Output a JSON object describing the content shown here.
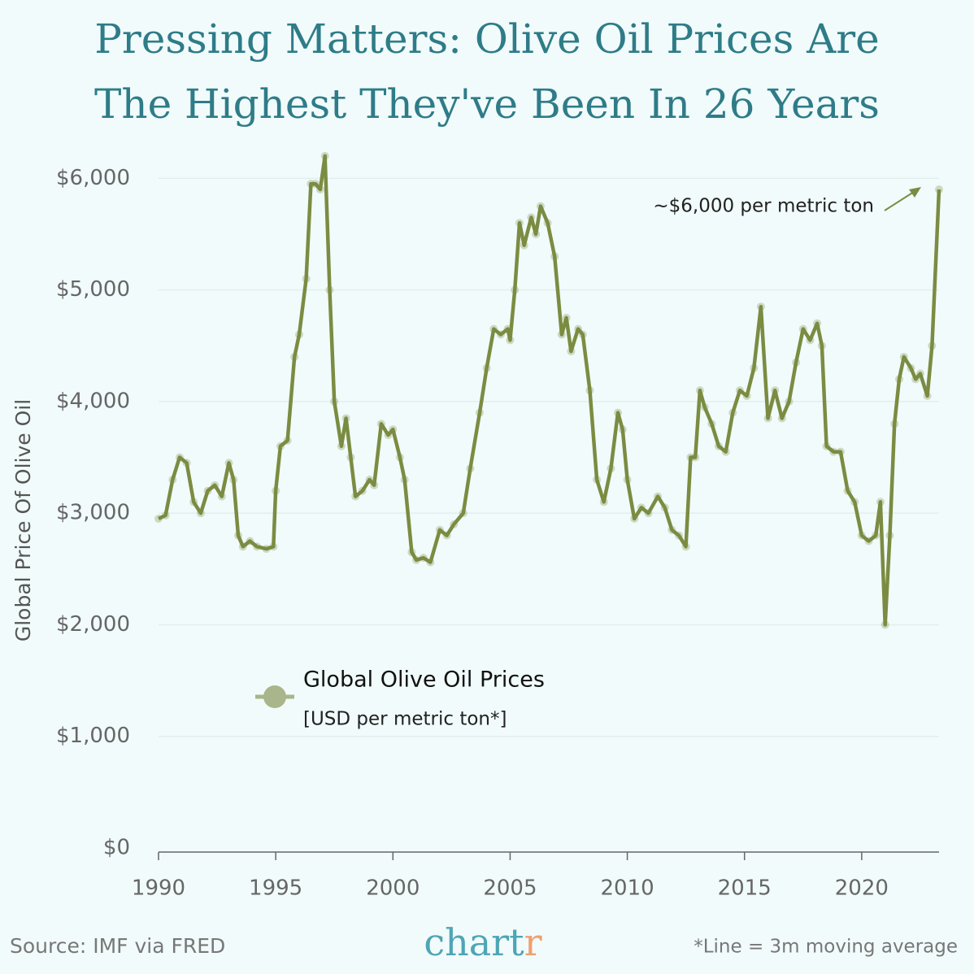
{
  "chart_data": {
    "type": "line",
    "title": [
      "Pressing Matters: Olive Oil Prices Are",
      "The Highest They've Been In 26 Years"
    ],
    "ylabel": "Global Price Of Olive Oil",
    "annotation": "~$6,000 per metric ton",
    "legend_note": "[USD per metric ton*]",
    "source": "Source: IMF via FRED",
    "footnote": "*Line = 3m moving average",
    "brand": [
      "chart",
      "r"
    ],
    "x": [
      1990.0,
      1990.3,
      1990.6,
      1990.9,
      1991.2,
      1991.5,
      1991.8,
      1992.1,
      1992.4,
      1992.7,
      1993.0,
      1993.2,
      1993.4,
      1993.6,
      1993.9,
      1994.2,
      1994.6,
      1994.9,
      1995.0,
      1995.2,
      1995.5,
      1995.8,
      1996.0,
      1996.3,
      1996.5,
      1996.7,
      1996.9,
      1997.1,
      1997.3,
      1997.5,
      1997.8,
      1998.0,
      1998.2,
      1998.4,
      1998.7,
      1999.0,
      1999.2,
      1999.5,
      1999.8,
      2000.0,
      2000.3,
      2000.5,
      2000.8,
      2001.0,
      2001.3,
      2001.6,
      2002.0,
      2002.3,
      2002.6,
      2003.0,
      2003.3,
      2003.7,
      2004.0,
      2004.3,
      2004.6,
      2004.9,
      2005.0,
      2005.2,
      2005.4,
      2005.6,
      2005.9,
      2006.1,
      2006.3,
      2006.6,
      2006.9,
      2007.2,
      2007.4,
      2007.6,
      2007.9,
      2008.1,
      2008.4,
      2008.7,
      2009.0,
      2009.3,
      2009.6,
      2009.8,
      2010.0,
      2010.3,
      2010.6,
      2010.9,
      2011.3,
      2011.6,
      2011.9,
      2012.2,
      2012.5,
      2012.7,
      2012.9,
      2013.1,
      2013.3,
      2013.6,
      2013.9,
      2014.2,
      2014.5,
      2014.8,
      2015.1,
      2015.4,
      2015.7,
      2016.0,
      2016.3,
      2016.6,
      2016.9,
      2017.2,
      2017.5,
      2017.8,
      2018.1,
      2018.3,
      2018.5,
      2018.8,
      2019.1,
      2019.4,
      2019.7,
      2020.0,
      2020.3,
      2020.6,
      2020.8,
      2021.0,
      2021.2,
      2021.4,
      2021.6,
      2021.8,
      2022.1,
      2022.3,
      2022.5,
      2022.8,
      2023.0,
      2023.3
    ],
    "series": [
      {
        "name": "Global Olive Oil Prices",
        "color": "#7b8c42",
        "values": [
          2950,
          2980,
          3300,
          3500,
          3450,
          3100,
          3000,
          3200,
          3250,
          3150,
          3450,
          3300,
          2800,
          2700,
          2750,
          2700,
          2680,
          2700,
          3200,
          3600,
          3650,
          4400,
          4600,
          5100,
          5950,
          5950,
          5900,
          6200,
          5000,
          4000,
          3600,
          3850,
          3500,
          3150,
          3200,
          3300,
          3250,
          3800,
          3700,
          3750,
          3500,
          3300,
          2650,
          2580,
          2600,
          2560,
          2850,
          2800,
          2900,
          3000,
          3400,
          3900,
          4300,
          4650,
          4600,
          4650,
          4550,
          5000,
          5600,
          5400,
          5650,
          5500,
          5750,
          5600,
          5300,
          4600,
          4750,
          4450,
          4650,
          4600,
          4100,
          3300,
          3100,
          3400,
          3900,
          3750,
          3300,
          2950,
          3050,
          3000,
          3150,
          3050,
          2850,
          2800,
          2700,
          3500,
          3500,
          4100,
          3950,
          3800,
          3600,
          3550,
          3900,
          4100,
          4050,
          4300,
          4850,
          3850,
          4100,
          3850,
          4000,
          4350,
          4650,
          4550,
          4700,
          4500,
          3600,
          3550,
          3550,
          3200,
          3100,
          2800,
          2750,
          2800,
          3100,
          2000,
          2800,
          3800,
          4200,
          4400,
          4300,
          4200,
          4250,
          4050,
          4500,
          5900
        ]
      }
    ],
    "xlim": [
      1990,
      2023.3
    ],
    "ylim": [
      0,
      6250
    ],
    "xticks": [
      1990,
      1995,
      2000,
      2005,
      2010,
      2015,
      2020
    ],
    "yticks": [
      {
        "value": 0,
        "label": "$0"
      },
      {
        "value": 1000,
        "label": "$1,000"
      },
      {
        "value": 2000,
        "label": "$2,000"
      },
      {
        "value": 3000,
        "label": "$3,000"
      },
      {
        "value": 4000,
        "label": "$4,000"
      },
      {
        "value": 5000,
        "label": "$5,000"
      },
      {
        "value": 6000,
        "label": "$6,000"
      }
    ],
    "grid": true
  }
}
